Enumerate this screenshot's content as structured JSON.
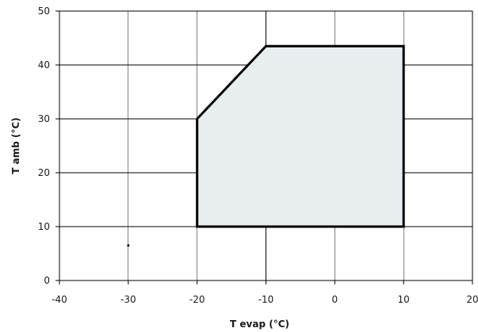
{
  "chart_data": {
    "type": "area",
    "xlabel": "T evap (°C)",
    "ylabel": "T amb (°C)",
    "xlim": [
      -40,
      20
    ],
    "ylim": [
      0,
      50
    ],
    "x_ticks": [
      -40,
      -30,
      -20,
      -10,
      0,
      10,
      20
    ],
    "y_ticks": [
      0,
      10,
      20,
      30,
      40,
      50
    ],
    "grid": true,
    "envelope": {
      "points": [
        {
          "x": -20,
          "y": 10
        },
        {
          "x": -20,
          "y": 30
        },
        {
          "x": -10,
          "y": 43.5
        },
        {
          "x": 10,
          "y": 43.5
        },
        {
          "x": 10,
          "y": 10
        }
      ],
      "fill_color": "#e8eef0",
      "stroke_color": "#000000"
    },
    "marker": {
      "x": -30,
      "y": 6.5
    }
  }
}
